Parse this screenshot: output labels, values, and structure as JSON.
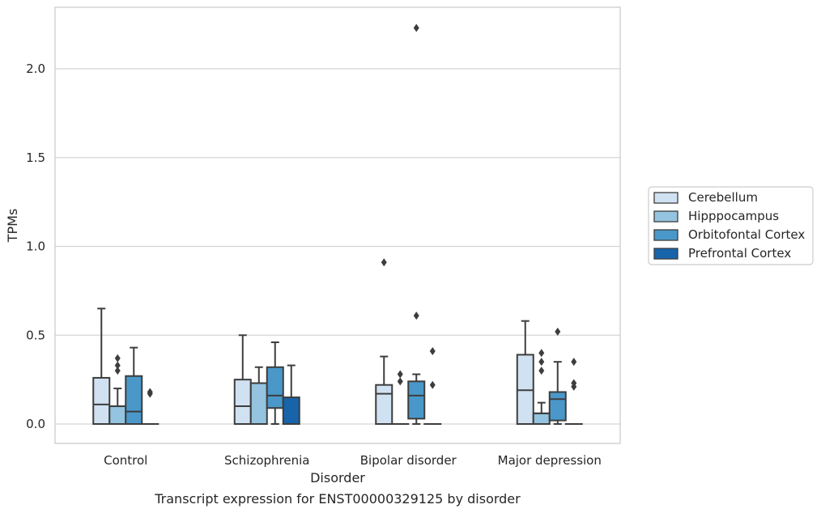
{
  "chart_data": {
    "type": "box",
    "title": "",
    "caption": "Transcript expression for ENST00000329125 by disorder",
    "xlabel": "Disorder",
    "ylabel": "TPMs",
    "ylim": [
      -0.11,
      2.35
    ],
    "yticks": [
      "0.0",
      "0.5",
      "1.0",
      "1.5",
      "2.0"
    ],
    "grid": "horizontal",
    "legend_position": "right",
    "categories": [
      "Control",
      "Schizophrenia",
      "Bipolar disorder",
      "Major depression"
    ],
    "series": [
      {
        "name": "Cerebellum",
        "color": "#d0e1f2",
        "boxes": [
          {
            "whisker_low": 0.0,
            "q1": 0.0,
            "median": 0.11,
            "q3": 0.26,
            "whisker_high": 0.65,
            "outliers": []
          },
          {
            "whisker_low": 0.0,
            "q1": 0.0,
            "median": 0.1,
            "q3": 0.25,
            "whisker_high": 0.5,
            "outliers": []
          },
          {
            "whisker_low": 0.0,
            "q1": 0.0,
            "median": 0.17,
            "q3": 0.22,
            "whisker_high": 0.38,
            "outliers": [
              0.91
            ]
          },
          {
            "whisker_low": 0.0,
            "q1": 0.0,
            "median": 0.19,
            "q3": 0.39,
            "whisker_high": 0.58,
            "outliers": []
          }
        ]
      },
      {
        "name": "Hipppocampus",
        "color": "#94c4df",
        "boxes": [
          {
            "whisker_low": 0.0,
            "q1": 0.0,
            "median": 0.1,
            "q3": 0.1,
            "whisker_high": 0.2,
            "outliers": [
              0.3,
              0.33,
              0.37
            ]
          },
          {
            "whisker_low": 0.0,
            "q1": 0.0,
            "median": 0.23,
            "q3": 0.23,
            "whisker_high": 0.32,
            "outliers": []
          },
          {
            "whisker_low": 0.0,
            "q1": 0.0,
            "median": 0.0,
            "q3": 0.0,
            "whisker_high": 0.0,
            "outliers": [
              0.24,
              0.28
            ]
          },
          {
            "whisker_low": 0.0,
            "q1": 0.0,
            "median": 0.06,
            "q3": 0.06,
            "whisker_high": 0.12,
            "outliers": [
              0.3,
              0.35,
              0.4
            ]
          }
        ]
      },
      {
        "name": "Orbitofontal Cortex",
        "color": "#4a98c9",
        "boxes": [
          {
            "whisker_low": 0.0,
            "q1": 0.0,
            "median": 0.07,
            "q3": 0.27,
            "whisker_high": 0.43,
            "outliers": []
          },
          {
            "whisker_low": 0.0,
            "q1": 0.09,
            "median": 0.16,
            "q3": 0.32,
            "whisker_high": 0.46,
            "outliers": []
          },
          {
            "whisker_low": 0.0,
            "q1": 0.03,
            "median": 0.16,
            "q3": 0.24,
            "whisker_high": 0.28,
            "outliers": [
              0.61,
              2.23
            ]
          },
          {
            "whisker_low": 0.0,
            "q1": 0.02,
            "median": 0.14,
            "q3": 0.18,
            "whisker_high": 0.35,
            "outliers": [
              0.52
            ]
          }
        ]
      },
      {
        "name": "Prefrontal Cortex",
        "color": "#1764ab",
        "boxes": [
          {
            "whisker_low": 0.0,
            "q1": 0.0,
            "median": 0.0,
            "q3": 0.0,
            "whisker_high": 0.0,
            "outliers": [
              0.17,
              0.18
            ]
          },
          {
            "whisker_low": 0.0,
            "q1": 0.0,
            "median": 0.0,
            "q3": 0.15,
            "whisker_high": 0.33,
            "outliers": []
          },
          {
            "whisker_low": 0.0,
            "q1": 0.0,
            "median": 0.0,
            "q3": 0.0,
            "whisker_high": 0.0,
            "outliers": [
              0.22,
              0.41
            ]
          },
          {
            "whisker_low": 0.0,
            "q1": 0.0,
            "median": 0.0,
            "q3": 0.0,
            "whisker_high": 0.0,
            "outliers": [
              0.21,
              0.23,
              0.35
            ]
          }
        ]
      }
    ]
  }
}
